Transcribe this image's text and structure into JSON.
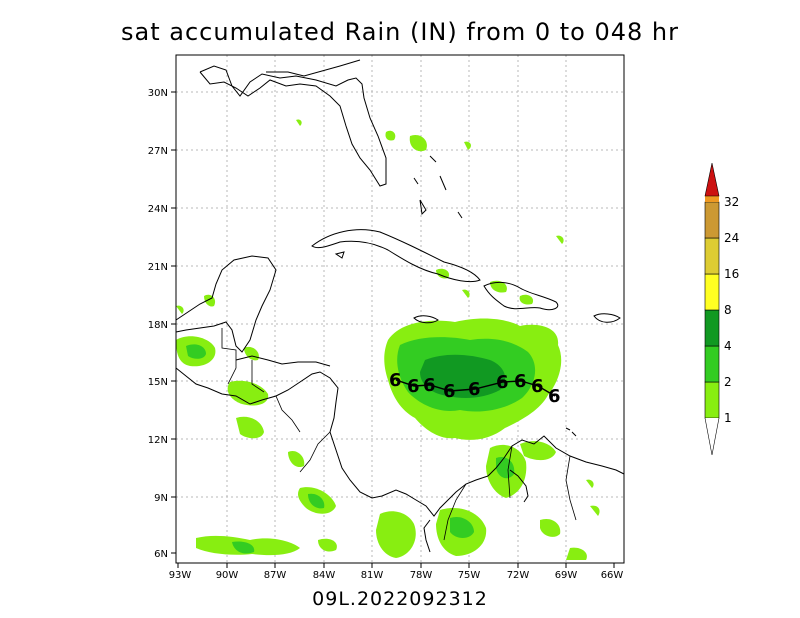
{
  "title": "sat accumulated Rain (IN) from 0 to 048 hr",
  "footer": "09L.2022092312",
  "lon_ticks": [
    "93W",
    "90W",
    "87W",
    "84W",
    "81W",
    "78W",
    "75W",
    "72W",
    "69W",
    "66W"
  ],
  "lat_ticks": [
    "30N",
    "27N",
    "24N",
    "21N",
    "18N",
    "15N",
    "12N",
    "9N",
    "6N"
  ],
  "colorbar": {
    "labels": [
      "1",
      "2",
      "4",
      "8",
      "16",
      "24",
      "32"
    ],
    "colors": [
      "#88ee11",
      "#33cc22",
      "#119922",
      "#ffff22",
      "#ddcc33",
      "#cc9933",
      "#ee9922",
      "#cc1111"
    ]
  },
  "storm_symbol": "6"
}
